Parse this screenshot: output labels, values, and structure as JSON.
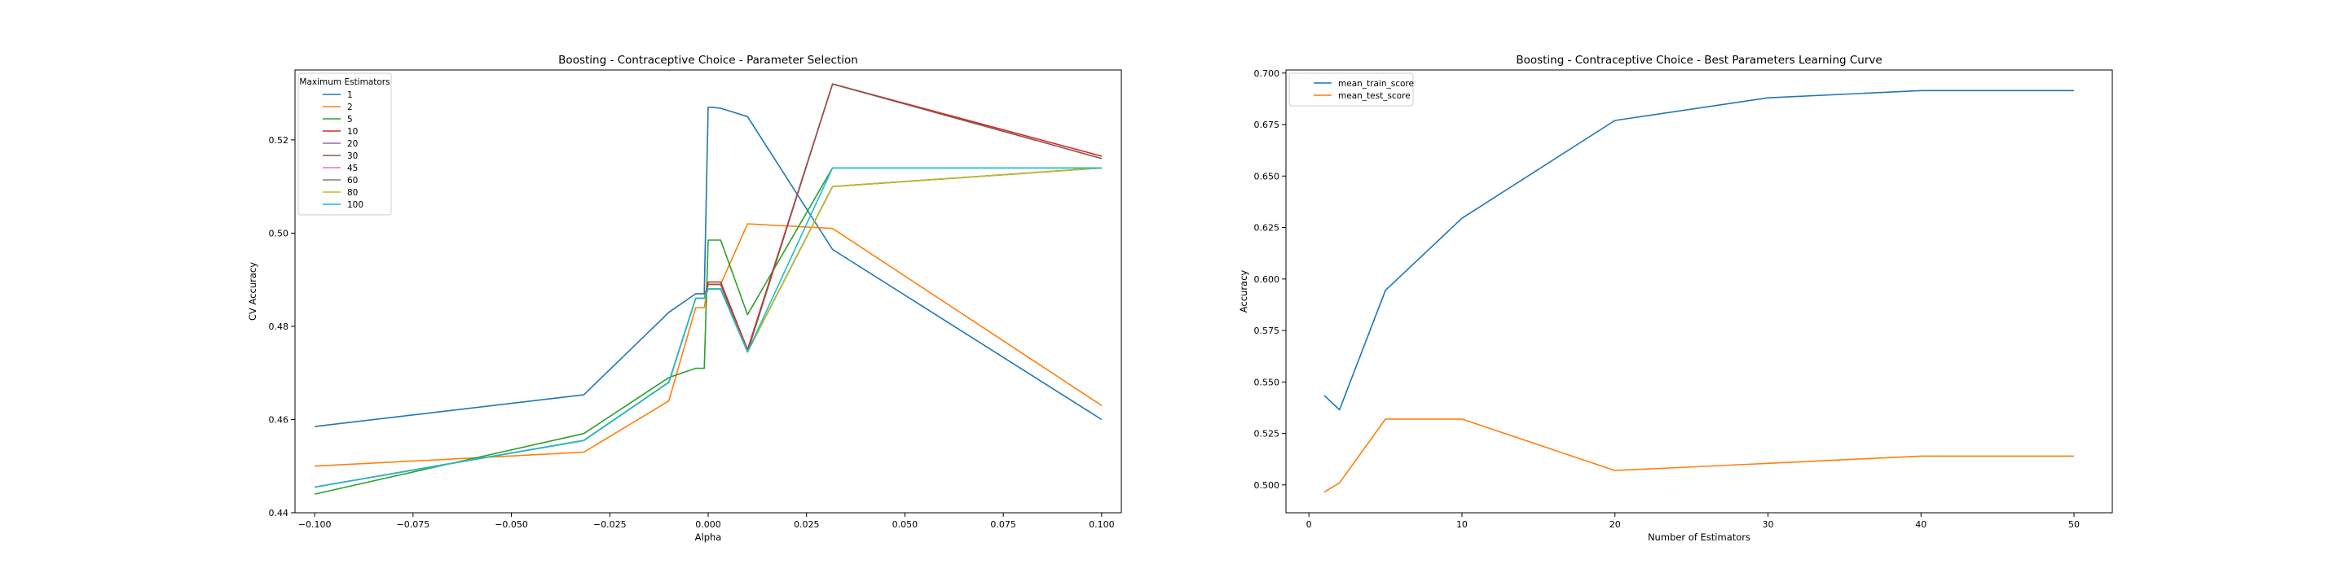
{
  "chart_data": [
    {
      "type": "line",
      "title": "Boosting - Contraceptive Choice - Parameter Selection",
      "xlabel": "Alpha",
      "ylabel": "CV Accuracy",
      "xlim": [
        -0.105,
        0.105
      ],
      "ylim": [
        0.44,
        0.535
      ],
      "xticks": [
        -0.1,
        -0.075,
        -0.05,
        -0.025,
        0.0,
        0.025,
        0.05,
        0.075,
        0.1
      ],
      "xtick_labels": [
        "−0.100",
        "−0.075",
        "−0.050",
        "−0.025",
        "0.000",
        "0.025",
        "0.050",
        "0.075",
        "0.100"
      ],
      "yticks": [
        0.44,
        0.46,
        0.48,
        0.5,
        0.52
      ],
      "ytick_labels": [
        "0.44",
        "0.46",
        "0.48",
        "0.50",
        "0.52"
      ],
      "grid": false,
      "legend": {
        "title": "Maximum Estimators",
        "placement": "top-left"
      },
      "x": [
        -0.1,
        -0.0316,
        -0.01,
        -0.00316,
        -0.001,
        0.0,
        0.001,
        0.00316,
        0.01,
        0.0316,
        0.1
      ],
      "series": [
        {
          "name": "1",
          "color": "#1f77b4",
          "values": [
            0.4585,
            0.4653,
            0.483,
            0.487,
            0.487,
            0.527,
            0.527,
            0.5268,
            0.525,
            0.4965,
            0.46
          ]
        },
        {
          "name": "2",
          "color": "#ff7f0e",
          "values": [
            0.45,
            0.453,
            0.464,
            0.484,
            0.484,
            0.489,
            0.489,
            0.489,
            0.502,
            0.501,
            0.463
          ]
        },
        {
          "name": "5",
          "color": "#2ca02c",
          "values": [
            0.444,
            0.457,
            0.469,
            0.471,
            0.471,
            0.4985,
            0.4985,
            0.4985,
            0.4825,
            0.514,
            0.514
          ]
        },
        {
          "name": "10",
          "color": "#d62728",
          "values": [
            0.4455,
            0.4555,
            0.468,
            0.486,
            0.486,
            0.4895,
            0.4895,
            0.4895,
            0.475,
            0.532,
            0.5165
          ]
        },
        {
          "name": "20",
          "color": "#9467bd",
          "values": [
            0.4455,
            0.4555,
            0.468,
            0.486,
            0.486,
            0.488,
            0.488,
            0.488,
            0.4745,
            0.51,
            0.514
          ]
        },
        {
          "name": "30",
          "color": "#8c564b",
          "values": [
            0.4455,
            0.4555,
            0.468,
            0.486,
            0.486,
            0.489,
            0.489,
            0.489,
            0.4745,
            0.532,
            0.516
          ]
        },
        {
          "name": "45",
          "color": "#e377c2",
          "values": [
            0.4455,
            0.4555,
            0.468,
            0.486,
            0.486,
            0.488,
            0.488,
            0.488,
            0.4745,
            0.51,
            0.514
          ]
        },
        {
          "name": "60",
          "color": "#7f7f7f",
          "values": [
            0.4455,
            0.4555,
            0.468,
            0.486,
            0.486,
            0.488,
            0.488,
            0.488,
            0.4745,
            0.51,
            0.514
          ]
        },
        {
          "name": "80",
          "color": "#bcbd22",
          "values": [
            0.4455,
            0.4555,
            0.468,
            0.486,
            0.486,
            0.488,
            0.488,
            0.488,
            0.4745,
            0.51,
            0.514
          ]
        },
        {
          "name": "100",
          "color": "#17becf",
          "values": [
            0.4455,
            0.4555,
            0.468,
            0.486,
            0.486,
            0.488,
            0.488,
            0.488,
            0.4745,
            0.514,
            0.514
          ]
        }
      ]
    },
    {
      "type": "line",
      "title": "Boosting - Contraceptive Choice - Best Parameters Learning Curve",
      "xlabel": "Number of Estimators",
      "ylabel": "Accuracy",
      "xlim": [
        -1.5,
        52.5
      ],
      "ylim": [
        0.4865,
        0.7015
      ],
      "xticks": [
        0,
        10,
        20,
        30,
        40,
        50
      ],
      "xtick_labels": [
        "0",
        "10",
        "20",
        "30",
        "40",
        "50"
      ],
      "yticks": [
        0.5,
        0.525,
        0.55,
        0.575,
        0.6,
        0.625,
        0.65,
        0.675,
        0.7
      ],
      "ytick_labels": [
        "0.500",
        "0.525",
        "0.550",
        "0.575",
        "0.600",
        "0.625",
        "0.650",
        "0.675",
        "0.700"
      ],
      "grid": false,
      "legend": {
        "title": "",
        "placement": "top-left"
      },
      "x": [
        1,
        2,
        5,
        10,
        20,
        30,
        40,
        50
      ],
      "series": [
        {
          "name": "mean_train_score",
          "color": "#1f77b4",
          "values": [
            0.5435,
            0.5365,
            0.5945,
            0.6295,
            0.677,
            0.688,
            0.6915,
            0.6915
          ]
        },
        {
          "name": "mean_test_score",
          "color": "#ff7f0e",
          "values": [
            0.4965,
            0.501,
            0.532,
            0.532,
            0.507,
            0.5105,
            0.514,
            0.514
          ]
        }
      ]
    }
  ]
}
